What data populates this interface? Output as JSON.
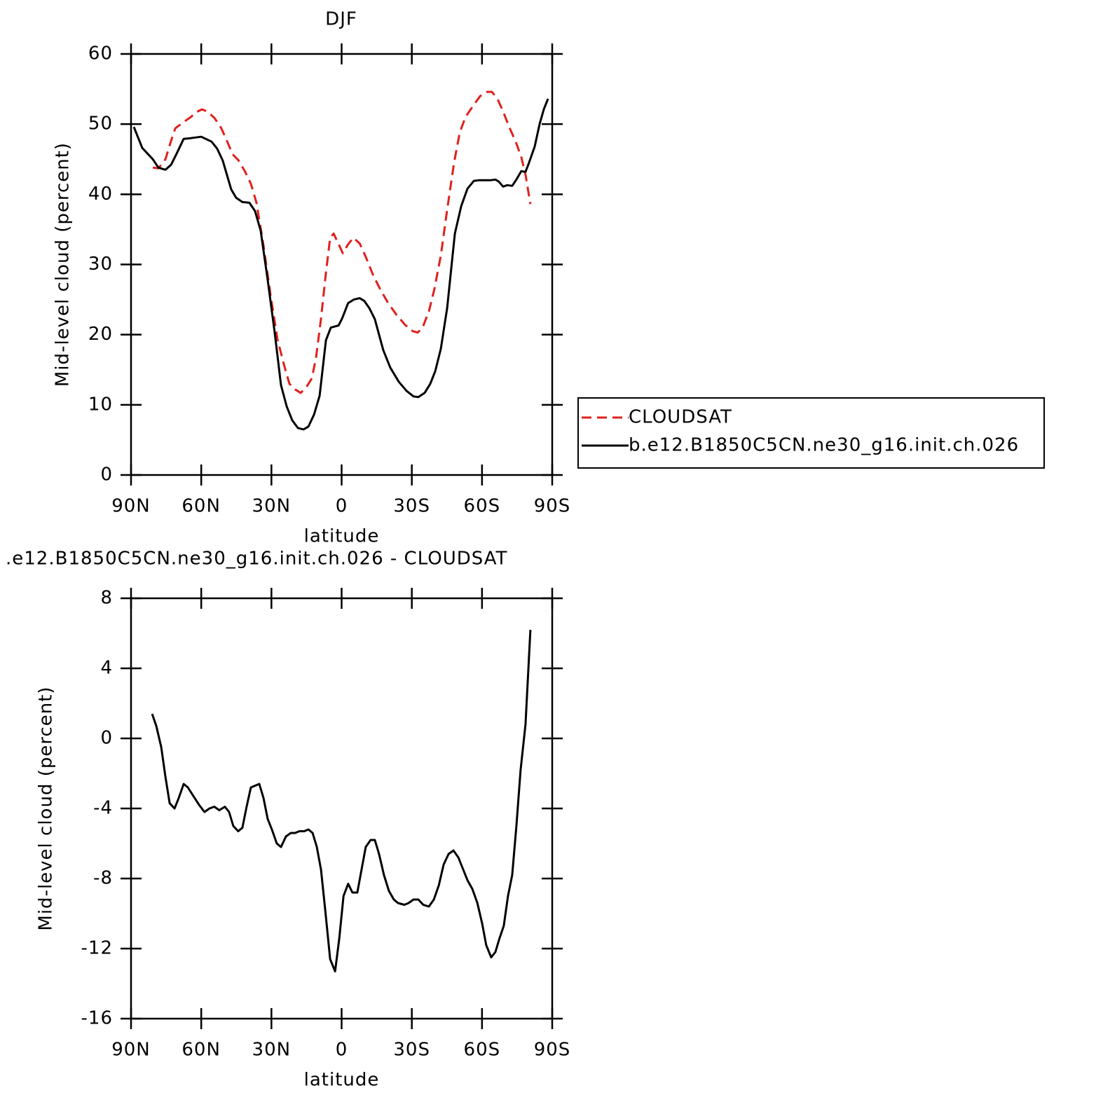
{
  "chart_data": [
    {
      "type": "line",
      "title": "DJF",
      "xlabel": "latitude",
      "ylabel": "Mid-level cloud (percent)",
      "xlim": [
        90,
        -90
      ],
      "xticks": [
        {
          "value": 90,
          "label": "90N"
        },
        {
          "value": 60,
          "label": "60N"
        },
        {
          "value": 30,
          "label": "30N"
        },
        0,
        {
          "value": -30,
          "label": "30S"
        },
        {
          "value": -60,
          "label": "60S"
        },
        {
          "value": -90,
          "label": "90S"
        }
      ],
      "ylim": [
        0,
        60
      ],
      "yticks": [
        0,
        10,
        20,
        30,
        40,
        50,
        60
      ],
      "legend": "right",
      "series": [
        {
          "name": "CLOUDSAT",
          "color": "#e0201c",
          "linestyle": "dashed",
          "x": [
            80.7,
            78.3,
            75.3,
            73.2,
            71.1,
            67.5,
            64.5,
            62.1,
            59.7,
            57.4,
            54.4,
            51.4,
            49,
            46.6,
            44.2,
            41.2,
            38.8,
            36.4,
            33.4,
            30.4,
            27.4,
            24.7,
            22.3,
            19.9,
            17.5,
            15.1,
            12.7,
            10.9,
            8.8,
            6.7,
            4.9,
            3.4,
            1.6,
            -0.5,
            -2.6,
            -5,
            -7.7,
            -10.3,
            -13.3,
            -16.6,
            -19.9,
            -23.5,
            -27.1,
            -30.4,
            -32.5,
            -34.6,
            -37.3,
            -39.7,
            -42.4,
            -45.1,
            -48.1,
            -50.5,
            -52.9,
            -56.2,
            -59.2,
            -62.2,
            -64.2,
            -66.6,
            -69,
            -72,
            -74.4,
            -76.8,
            -78.6,
            -80.7
          ],
          "values": [
            43.8,
            43.7,
            45,
            47.3,
            49.4,
            50.3,
            51,
            51.7,
            52.1,
            51.8,
            50.9,
            49.4,
            47.6,
            45.7,
            44.9,
            43.2,
            41.5,
            38.8,
            32.7,
            25.7,
            19.3,
            15.8,
            13,
            12.2,
            11.7,
            12.5,
            13.8,
            16.8,
            22.3,
            28.8,
            33.8,
            34.4,
            33.1,
            31.6,
            32.8,
            33.8,
            33,
            31.1,
            28.6,
            26.4,
            24.5,
            22.8,
            21.4,
            20.5,
            20.3,
            21,
            23.3,
            26.6,
            31.3,
            37.8,
            44.6,
            48.8,
            51,
            52.6,
            54,
            54.6,
            54.6,
            53.6,
            51.8,
            49.3,
            47.5,
            45.3,
            42.8,
            38.6
          ]
        },
        {
          "name": "b.e12.B1850C5CN.ne30_g16.init.ch.026",
          "color": "#000000",
          "linestyle": "solid",
          "x": [
            88.8,
            85.2,
            80.7,
            78.3,
            75.3,
            72.9,
            70.5,
            67.5,
            64.5,
            60,
            55.6,
            53.2,
            50.8,
            47.2,
            45.1,
            42.4,
            39.4,
            37,
            34.6,
            31.6,
            28.6,
            25.9,
            23.5,
            21.1,
            18.7,
            16.3,
            14.2,
            11.8,
            9.4,
            6.7,
            4.6,
            1.3,
            -0.2,
            -2.8,
            -5.2,
            -7.7,
            -9.7,
            -11.8,
            -14.2,
            -17.8,
            -20.8,
            -24.4,
            -27.7,
            -30.7,
            -32.8,
            -35.5,
            -37.9,
            -40,
            -42.4,
            -45.1,
            -48.4,
            -51.1,
            -53.8,
            -56.5,
            -58.8,
            -63.6,
            -65.7,
            -67.2,
            -69,
            -70.8,
            -72.9,
            -74.7,
            -76.8,
            -78.6,
            -80.1,
            -82.5,
            -84.6,
            -86.4,
            -88.2
          ],
          "values": [
            49.6,
            46.6,
            45,
            43.8,
            43.5,
            44.2,
            45.8,
            47.9,
            48,
            48.2,
            47.5,
            46.5,
            44.8,
            40.7,
            39.5,
            38.9,
            38.8,
            37.6,
            34.8,
            27.8,
            20.3,
            12.8,
            9.8,
            7.8,
            6.7,
            6.5,
            6.9,
            8.6,
            11.3,
            19.2,
            21,
            21.3,
            22.3,
            24.5,
            25,
            25.2,
            24.8,
            23.8,
            22.2,
            17.8,
            15.3,
            13.3,
            12,
            11.2,
            11.1,
            11.7,
            13,
            14.8,
            18,
            23.8,
            34.4,
            38.3,
            40.8,
            41.9,
            42,
            42,
            42.1,
            41.8,
            41.1,
            41.3,
            41.2,
            42.1,
            43.3,
            43.2,
            44.5,
            46.8,
            50,
            52.1,
            53.6
          ]
        }
      ]
    },
    {
      "type": "line",
      "title": ".e12.B1850C5CN.ne30_g16.init.ch.026 - CLOUDSAT",
      "xlabel": "latitude",
      "ylabel": "Mid-level cloud (percent)",
      "xlim": [
        90,
        -90
      ],
      "xticks": [
        {
          "value": 90,
          "label": "90N"
        },
        {
          "value": 60,
          "label": "60N"
        },
        {
          "value": 30,
          "label": "30N"
        },
        0,
        {
          "value": -30,
          "label": "30S"
        },
        {
          "value": -60,
          "label": "60S"
        },
        {
          "value": -90,
          "label": "90S"
        }
      ],
      "ylim": [
        -16,
        8
      ],
      "yticks": [
        -16,
        -12,
        -8,
        -4,
        0,
        4,
        8
      ],
      "series": [
        {
          "color": "#000000",
          "linestyle": "solid",
          "x": [
            81,
            79.2,
            77.1,
            75.3,
            73.5,
            71.4,
            69.6,
            67.5,
            65.7,
            63.3,
            60.9,
            58.6,
            56.5,
            54.4,
            52.3,
            49.9,
            48.1,
            46.3,
            44.2,
            42.4,
            40.6,
            38.8,
            37,
            35.2,
            33.4,
            31.6,
            29.8,
            27.7,
            25.9,
            23.8,
            21.7,
            19.9,
            18.1,
            16,
            14.2,
            12.4,
            10.6,
            8.8,
            7,
            4.9,
            2.8,
            1,
            -0.8,
            -2.8,
            -4.6,
            -6.7,
            -8.5,
            -10.3,
            -12.4,
            -14.2,
            -16,
            -18.1,
            -20.2,
            -22.3,
            -24.1,
            -26.8,
            -28.6,
            -30.7,
            -32.8,
            -34.9,
            -37.3,
            -39.4,
            -41.5,
            -43.6,
            -45.7,
            -47.8,
            -49.9,
            -52,
            -53.8,
            -55.9,
            -58,
            -60.1,
            -61.8,
            -63.9,
            -65.7,
            -67.5,
            -69.3,
            -71.1,
            -72.9,
            -74.7,
            -76.5,
            -78.6,
            -80.7
          ],
          "values": [
            1.4,
            0.7,
            -0.5,
            -2.2,
            -3.7,
            -4,
            -3.4,
            -2.6,
            -2.8,
            -3.3,
            -3.8,
            -4.2,
            -4,
            -3.9,
            -4.1,
            -3.9,
            -4.2,
            -5,
            -5.3,
            -5.1,
            -3.9,
            -2.8,
            -2.7,
            -2.6,
            -3.4,
            -4.6,
            -5.2,
            -6,
            -6.2,
            -5.6,
            -5.4,
            -5.4,
            -5.3,
            -5.3,
            -5.2,
            -5.4,
            -6.2,
            -7.5,
            -9.8,
            -12.6,
            -13.3,
            -11.4,
            -9,
            -8.3,
            -8.8,
            -8.8,
            -7.5,
            -6.2,
            -5.8,
            -5.8,
            -6.6,
            -7.8,
            -8.7,
            -9.2,
            -9.4,
            -9.5,
            -9.4,
            -9.2,
            -9.2,
            -9.5,
            -9.6,
            -9.2,
            -8.4,
            -7.2,
            -6.6,
            -6.4,
            -6.8,
            -7.5,
            -8.1,
            -8.6,
            -9.4,
            -10.6,
            -11.8,
            -12.5,
            -12.2,
            -11.4,
            -10.7,
            -9,
            -7.8,
            -5,
            -1.8,
            0.8,
            6.2
          ]
        }
      ]
    }
  ]
}
